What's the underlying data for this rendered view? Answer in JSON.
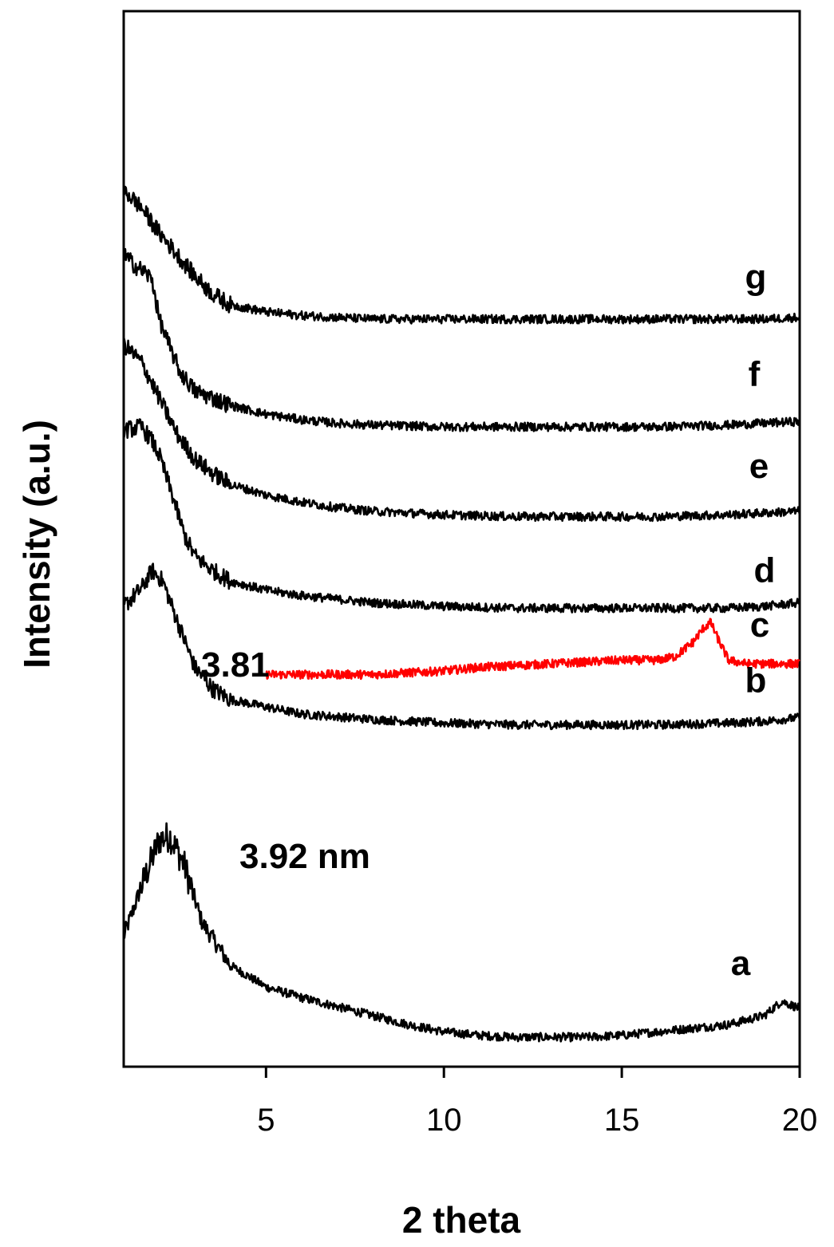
{
  "chart_data": {
    "type": "line",
    "xlabel": "2 theta",
    "ylabel": "Intensity (a.u.)",
    "xlim": [
      1.0,
      20
    ],
    "xticks": [
      5,
      10,
      15,
      20
    ],
    "y_ticks_shown": false,
    "grid": false,
    "legend": "none",
    "y_units": "arbitrary (stacked, offset curves)",
    "annotations": [
      "3.81",
      "3.92 nm"
    ],
    "series": [
      {
        "name": "a",
        "color": "#000000",
        "x": [
          1.0,
          1.5,
          2.0,
          2.3,
          2.7,
          3.2,
          4.0,
          5.0,
          6.0,
          7.0,
          8.0,
          9.0,
          10.0,
          11.0,
          12.0,
          13.0,
          14.0,
          15.0,
          16.0,
          17.0,
          18.0,
          19.0,
          19.5,
          20.0
        ],
        "y": [
          0.28,
          0.42,
          0.55,
          0.56,
          0.48,
          0.32,
          0.2,
          0.14,
          0.11,
          0.085,
          0.06,
          0.035,
          0.015,
          0.005,
          0.0,
          0.0,
          0.0,
          0.005,
          0.015,
          0.025,
          0.035,
          0.06,
          0.1,
          0.08
        ]
      },
      {
        "name": "b",
        "color": "#000000",
        "x": [
          1.0,
          1.5,
          1.8,
          2.1,
          2.5,
          3.0,
          3.5,
          4.0,
          5.0,
          6.0,
          8.0,
          10.0,
          12.0,
          14.0,
          16.0,
          18.0,
          19.0,
          20.0
        ],
        "y": [
          1.2,
          1.25,
          1.3,
          1.27,
          1.16,
          1.03,
          0.97,
          0.94,
          0.92,
          0.9,
          0.885,
          0.875,
          0.87,
          0.87,
          0.87,
          0.875,
          0.88,
          0.89
        ]
      },
      {
        "name": "c",
        "color": "#ff0000",
        "x": [
          5.0,
          6.0,
          7.0,
          8.0,
          9.0,
          10.0,
          11.0,
          12.0,
          13.0,
          14.0,
          15.0,
          16.0,
          16.5,
          17.0,
          17.3,
          17.5,
          17.7,
          18.0,
          18.5,
          19.0,
          20.0
        ],
        "y": [
          1.01,
          1.01,
          1.01,
          1.01,
          1.015,
          1.02,
          1.03,
          1.035,
          1.04,
          1.045,
          1.05,
          1.05,
          1.06,
          1.1,
          1.14,
          1.155,
          1.11,
          1.05,
          1.04,
          1.04,
          1.04
        ]
      },
      {
        "name": "d",
        "color": "#000000",
        "x": [
          1.0,
          1.5,
          1.8,
          2.0,
          2.4,
          2.7,
          3.0,
          3.5,
          4.0,
          5.0,
          6.0,
          7.0,
          8.0,
          10.0,
          12.0,
          14.0,
          16.0,
          18.0,
          19.0,
          20.0
        ],
        "y": [
          1.69,
          1.7,
          1.66,
          1.62,
          1.5,
          1.4,
          1.34,
          1.3,
          1.27,
          1.245,
          1.23,
          1.22,
          1.21,
          1.2,
          1.195,
          1.195,
          1.195,
          1.195,
          1.2,
          1.21
        ]
      },
      {
        "name": "e",
        "color": "#000000",
        "x": [
          1.0,
          1.5,
          1.8,
          2.2,
          2.5,
          3.0,
          3.5,
          4.0,
          5.0,
          6.0,
          7.0,
          8.0,
          10.0,
          12.0,
          14.0,
          16.0,
          18.0,
          19.0,
          20.0
        ],
        "y": [
          1.93,
          1.88,
          1.82,
          1.74,
          1.68,
          1.61,
          1.57,
          1.54,
          1.51,
          1.49,
          1.475,
          1.465,
          1.455,
          1.45,
          1.45,
          1.45,
          1.455,
          1.46,
          1.465
        ]
      },
      {
        "name": "f",
        "color": "#000000",
        "x": [
          1.0,
          1.3,
          1.6,
          1.8,
          2.0,
          2.3,
          2.6,
          3.0,
          3.5,
          4.0,
          5.0,
          6.0,
          7.0,
          8.0,
          10.0,
          12.0,
          14.0,
          16.0,
          18.0,
          19.0,
          20.0
        ],
        "y": [
          2.18,
          2.15,
          2.13,
          2.11,
          2.0,
          1.92,
          1.85,
          1.8,
          1.78,
          1.76,
          1.735,
          1.72,
          1.71,
          1.705,
          1.7,
          1.7,
          1.7,
          1.7,
          1.705,
          1.71,
          1.715
        ]
      },
      {
        "name": "g",
        "color": "#000000",
        "x": [
          1.0,
          1.5,
          2.0,
          2.5,
          3.0,
          3.5,
          4.0,
          5.0,
          6.0,
          8.0,
          10.0,
          12.0,
          14.0,
          16.0,
          18.0,
          19.0,
          20.0
        ],
        "y": [
          2.36,
          2.31,
          2.24,
          2.18,
          2.12,
          2.07,
          2.04,
          2.02,
          2.01,
          2.0,
          2.0,
          2.0,
          2.0,
          2.0,
          2.0,
          2.0,
          2.005
        ]
      }
    ]
  }
}
